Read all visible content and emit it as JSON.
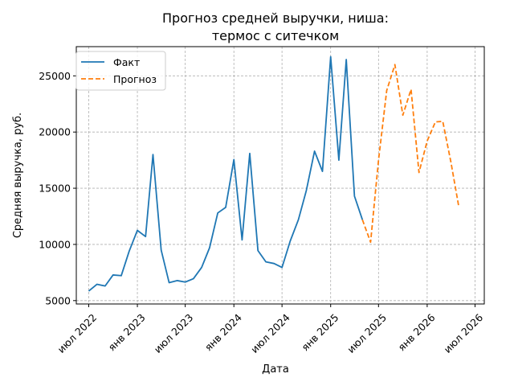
{
  "chart_data": {
    "type": "line",
    "title_line1": "Прогноз средней выручки, ниша:",
    "title_line2": "термос с ситечком",
    "xlabel": "Дата",
    "ylabel": "Средняя выручка, руб.",
    "ylim": [
      4700,
      27600
    ],
    "xlim": [
      "2022-05-15",
      "2026-08-05"
    ],
    "grid": true,
    "legend_position": "top-left",
    "x_ticks": [
      {
        "date": "2022-07-01",
        "label": "июл 2022"
      },
      {
        "date": "2023-01-01",
        "label": "янв 2023"
      },
      {
        "date": "2023-07-01",
        "label": "июл 2023"
      },
      {
        "date": "2024-01-01",
        "label": "янв 2024"
      },
      {
        "date": "2024-07-01",
        "label": "июл 2024"
      },
      {
        "date": "2025-01-01",
        "label": "янв 2025"
      },
      {
        "date": "2025-07-01",
        "label": "июл 2025"
      },
      {
        "date": "2026-01-01",
        "label": "янв 2026"
      },
      {
        "date": "2026-07-01",
        "label": "июл 2026"
      }
    ],
    "y_ticks": [
      {
        "value": 5000,
        "label": "5000"
      },
      {
        "value": 10000,
        "label": "10000"
      },
      {
        "value": 15000,
        "label": "15000"
      },
      {
        "value": 20000,
        "label": "20000"
      },
      {
        "value": 25000,
        "label": "25000"
      }
    ],
    "series": [
      {
        "name": "Факт",
        "color": "#1f77b4",
        "dash": "solid",
        "points": [
          {
            "x": "2022-07-01",
            "y": 5850
          },
          {
            "x": "2022-08-01",
            "y": 6450
          },
          {
            "x": "2022-09-01",
            "y": 6300
          },
          {
            "x": "2022-10-01",
            "y": 7280
          },
          {
            "x": "2022-11-01",
            "y": 7220
          },
          {
            "x": "2022-12-01",
            "y": 9400
          },
          {
            "x": "2023-01-01",
            "y": 11250
          },
          {
            "x": "2023-02-01",
            "y": 10700
          },
          {
            "x": "2023-03-01",
            "y": 18000
          },
          {
            "x": "2023-04-01",
            "y": 9500
          },
          {
            "x": "2023-05-01",
            "y": 6600
          },
          {
            "x": "2023-06-01",
            "y": 6780
          },
          {
            "x": "2023-07-01",
            "y": 6650
          },
          {
            "x": "2023-08-01",
            "y": 6950
          },
          {
            "x": "2023-09-01",
            "y": 7950
          },
          {
            "x": "2023-10-01",
            "y": 9700
          },
          {
            "x": "2023-11-01",
            "y": 12800
          },
          {
            "x": "2023-12-01",
            "y": 13300
          },
          {
            "x": "2024-01-01",
            "y": 17550
          },
          {
            "x": "2024-02-01",
            "y": 10400
          },
          {
            "x": "2024-03-01",
            "y": 18100
          },
          {
            "x": "2024-04-01",
            "y": 9450
          },
          {
            "x": "2024-05-01",
            "y": 8450
          },
          {
            "x": "2024-06-01",
            "y": 8300
          },
          {
            "x": "2024-07-01",
            "y": 7950
          },
          {
            "x": "2024-08-01",
            "y": 10300
          },
          {
            "x": "2024-09-01",
            "y": 12200
          },
          {
            "x": "2024-10-01",
            "y": 14800
          },
          {
            "x": "2024-11-01",
            "y": 18300
          },
          {
            "x": "2024-12-01",
            "y": 16500
          },
          {
            "x": "2025-01-01",
            "y": 26700
          },
          {
            "x": "2025-02-01",
            "y": 17500
          },
          {
            "x": "2025-03-01",
            "y": 26450
          },
          {
            "x": "2025-04-01",
            "y": 14300
          },
          {
            "x": "2025-05-01",
            "y": 12200
          }
        ]
      },
      {
        "name": "Прогноз",
        "color": "#ff7f0e",
        "dash": "dashed",
        "points": [
          {
            "x": "2025-05-01",
            "y": 12200
          },
          {
            "x": "2025-06-01",
            "y": 10200
          },
          {
            "x": "2025-07-01",
            "y": 17500
          },
          {
            "x": "2025-08-01",
            "y": 23700
          },
          {
            "x": "2025-09-01",
            "y": 26000
          },
          {
            "x": "2025-10-01",
            "y": 21500
          },
          {
            "x": "2025-11-01",
            "y": 23800
          },
          {
            "x": "2025-12-01",
            "y": 16400
          },
          {
            "x": "2026-01-01",
            "y": 19200
          },
          {
            "x": "2026-02-01",
            "y": 20900
          },
          {
            "x": "2026-03-01",
            "y": 20950
          },
          {
            "x": "2026-04-01",
            "y": 17300
          },
          {
            "x": "2026-05-01",
            "y": 13300
          }
        ]
      }
    ]
  }
}
